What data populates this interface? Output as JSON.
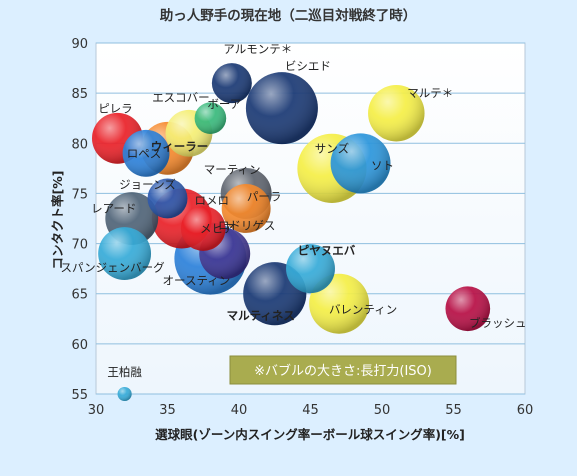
{
  "chart_data": {
    "type": "scatter",
    "title": "助っ人野手の現在地（二巡目対戦終了時）",
    "xlabel": "選球眼(ゾーン内スイング率ーボール球スイング率)[%]",
    "ylabel": "コンタクト率[%]",
    "xlim": [
      30,
      60
    ],
    "ylim": [
      55,
      90
    ],
    "xticks": [
      30,
      35,
      40,
      45,
      50,
      55,
      60
    ],
    "yticks": [
      55,
      60,
      65,
      70,
      75,
      80,
      85,
      90
    ],
    "grid": "horizontal",
    "note": "※バブルの大きさ:長打力(ISO)",
    "points": [
      {
        "name": "ピレラ",
        "x": 31.5,
        "y": 80.5,
        "size": 0.13,
        "color": "#e8131b",
        "bold": false
      },
      {
        "name": "ロペス",
        "x": 33.5,
        "y": 79.0,
        "size": 0.11,
        "color": "#1f7ad8",
        "bold": false
      },
      {
        "name": "ウィーラー",
        "x": 35.0,
        "y": 79.5,
        "size": 0.14,
        "color": "#f58220",
        "bold": true
      },
      {
        "name": "エスコバー",
        "x": 36.5,
        "y": 81.0,
        "size": 0.11,
        "color": "#f4ee6c",
        "bold": false
      },
      {
        "name": "ボーア",
        "x": 38.0,
        "y": 82.5,
        "size": 0.05,
        "color": "#2db574",
        "bold": false
      },
      {
        "name": "アルモンテ＊",
        "x": 39.5,
        "y": 86.0,
        "size": 0.08,
        "color": "#0c2d6b",
        "bold": false
      },
      {
        "name": "ビシエド",
        "x": 43.0,
        "y": 83.5,
        "size": 0.26,
        "color": "#0c2d6b",
        "bold": false
      },
      {
        "name": "マルテ＊",
        "x": 51.0,
        "y": 83.0,
        "size": 0.16,
        "color": "#f4ee3c",
        "bold": false
      },
      {
        "name": "ソト",
        "x": 48.5,
        "y": 78.0,
        "size": 0.18,
        "color": "#1e8fd9",
        "bold": false
      },
      {
        "name": "サンズ",
        "x": 46.5,
        "y": 77.5,
        "size": 0.24,
        "color": "#f4ee3c",
        "bold": false
      },
      {
        "name": "マーティン",
        "x": 40.5,
        "y": 75.0,
        "size": 0.13,
        "color": "#555b66",
        "bold": false
      },
      {
        "name": "ジョーンズ",
        "x": 35.0,
        "y": 74.5,
        "size": 0.08,
        "color": "#1f4fa8",
        "bold": false
      },
      {
        "name": "ロメロ",
        "x": 36.0,
        "y": 72.5,
        "size": 0.18,
        "color": "#e8131b",
        "bold": false
      },
      {
        "name": "メヒア",
        "x": 37.5,
        "y": 71.5,
        "size": 0.1,
        "color": "#e8131b",
        "bold": false
      },
      {
        "name": "パーラ",
        "x": 40.5,
        "y": 73.5,
        "size": 0.12,
        "color": "#f58220",
        "bold": false
      },
      {
        "name": "レアード",
        "x": 32.5,
        "y": 72.5,
        "size": 0.14,
        "color": "#445a70",
        "bold": false
      },
      {
        "name": "スパンジェンバーグ",
        "x": 32.0,
        "y": 69.0,
        "size": 0.14,
        "color": "#2aa6d6",
        "bold": false
      },
      {
        "name": "オースティン",
        "x": 38.0,
        "y": 68.5,
        "size": 0.26,
        "color": "#1f7ad8",
        "bold": false
      },
      {
        "name": "ロドリゲス",
        "x": 39.0,
        "y": 69.0,
        "size": 0.13,
        "color": "#3a2f8e",
        "bold": false
      },
      {
        "name": "ピヤヌエバ",
        "x": 45.0,
        "y": 67.5,
        "size": 0.12,
        "color": "#2aa6d6",
        "bold": true
      },
      {
        "name": "マルティネス",
        "x": 42.5,
        "y": 65.0,
        "size": 0.2,
        "color": "#0c2d6b",
        "bold": true
      },
      {
        "name": "バレンティン",
        "x": 47.0,
        "y": 64.0,
        "size": 0.18,
        "color": "#f4ee3c",
        "bold": false
      },
      {
        "name": "ブラッシュ",
        "x": 56.0,
        "y": 63.5,
        "size": 0.1,
        "color": "#b3003a",
        "bold": false
      },
      {
        "name": "王柏融",
        "x": 32.0,
        "y": 55.0,
        "size": 0.01,
        "color": "#2aa6d6",
        "bold": false
      }
    ]
  }
}
